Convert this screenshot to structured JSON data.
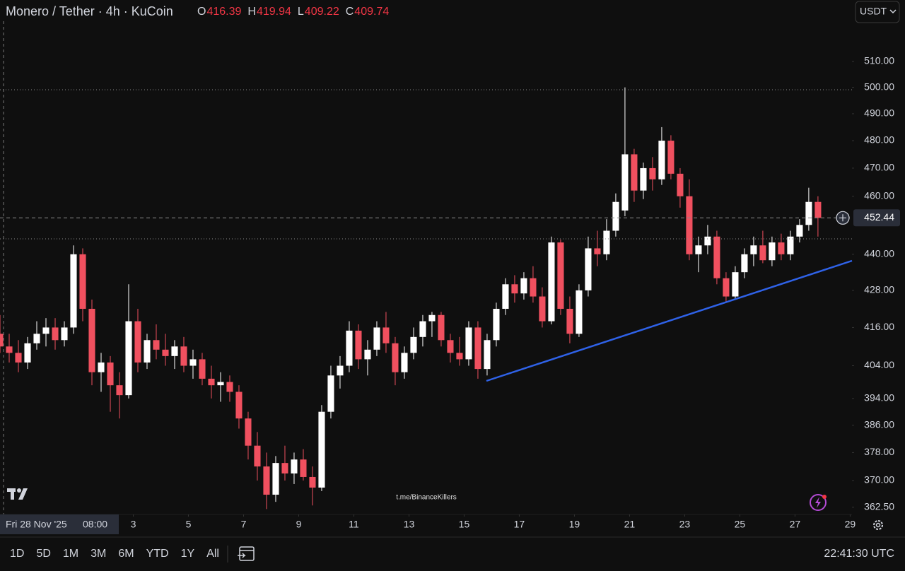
{
  "header": {
    "symbol": "Monero / Tether · 4h · KuCoin",
    "ohlc": [
      {
        "label": "O",
        "value": 416.39
      },
      {
        "label": "H",
        "value": 419.94
      },
      {
        "label": "L",
        "value": 409.22
      },
      {
        "label": "C",
        "value": 409.74
      }
    ],
    "currency": "USDT"
  },
  "chart_data": {
    "type": "candlestick",
    "log_scale": true,
    "up_color": "#ffffff",
    "down_color": "#f0505f",
    "ylim": [
      360.5,
      534.6
    ],
    "yticks": [
      {
        "value": 510,
        "label": "510.00"
      },
      {
        "value": 500,
        "label": "500.00"
      },
      {
        "value": 490,
        "label": "490.00"
      },
      {
        "value": 480,
        "label": "480.00"
      },
      {
        "value": 470,
        "label": "470.00"
      },
      {
        "value": 460,
        "label": "460.00"
      },
      {
        "value": 440,
        "label": "440.00"
      },
      {
        "value": 428,
        "label": "428.00"
      },
      {
        "value": 416,
        "label": "416.00"
      },
      {
        "value": 404,
        "label": "404.00"
      },
      {
        "value": 394,
        "label": "394.00"
      },
      {
        "value": 386,
        "label": "386.00"
      },
      {
        "value": 378,
        "label": "378.00"
      },
      {
        "value": 370,
        "label": "370.00"
      },
      {
        "value": 362.5,
        "label": "362.50"
      }
    ],
    "xlim": [
      0.5,
      93.2
    ],
    "xticks": [
      {
        "value": 15,
        "label": "3"
      },
      {
        "value": 21,
        "label": "5"
      },
      {
        "value": 27,
        "label": "7"
      },
      {
        "value": 33,
        "label": "9"
      },
      {
        "value": 39,
        "label": "11"
      },
      {
        "value": 45,
        "label": "13"
      },
      {
        "value": 51,
        "label": "15"
      },
      {
        "value": 57,
        "label": "17"
      },
      {
        "value": 63,
        "label": "19"
      },
      {
        "value": 69,
        "label": "21"
      },
      {
        "value": 75,
        "label": "23"
      },
      {
        "value": 81,
        "label": "25"
      },
      {
        "value": 87,
        "label": "27"
      },
      {
        "value": 93,
        "label": "29"
      }
    ],
    "crosshair_date": "Fri 28 Nov '25",
    "crosshair_time": "08:00",
    "current_price": 452.44,
    "open": [
      414,
      410,
      408,
      405,
      411,
      414,
      416,
      412,
      416,
      440,
      422,
      402,
      405,
      398,
      395,
      418,
      405,
      412,
      409,
      407,
      410,
      404,
      406,
      400,
      398,
      399,
      396,
      388,
      380,
      374,
      366,
      375,
      372,
      376,
      371,
      368,
      390,
      401,
      404,
      415,
      406,
      409,
      416,
      411,
      402,
      408,
      413,
      418,
      420,
      412,
      408,
      406,
      416,
      403,
      412,
      422,
      430,
      427,
      432,
      426,
      418,
      444,
      422,
      414,
      428,
      442,
      440,
      448,
      455,
      475,
      462,
      470,
      466,
      480,
      468,
      460,
      440,
      443,
      446,
      432,
      426,
      434,
      440,
      443,
      438,
      444,
      440,
      446,
      450,
      458
    ],
    "high": [
      420,
      414,
      412,
      413,
      418,
      419,
      419,
      418,
      443,
      442,
      425,
      408,
      407,
      402,
      430,
      422,
      414,
      417,
      414,
      412,
      413,
      409,
      408,
      404,
      402,
      401,
      398,
      390,
      384,
      378,
      377,
      380,
      378,
      379,
      374,
      392,
      404,
      407,
      418,
      417,
      412,
      418,
      421,
      413,
      410,
      416,
      420,
      421,
      421,
      414,
      413,
      418,
      418,
      414,
      424,
      432,
      433,
      434,
      436,
      429,
      446,
      445,
      426,
      430,
      446,
      448,
      452,
      461,
      500,
      477,
      472,
      474,
      485,
      482,
      470,
      466,
      446,
      450,
      448,
      434,
      436,
      442,
      446,
      448,
      446,
      447,
      448,
      452,
      463,
      460
    ],
    "low": [
      408,
      405,
      402,
      403,
      409,
      410,
      409,
      410,
      414,
      418,
      398,
      396,
      390,
      388,
      394,
      402,
      403,
      406,
      404,
      403,
      402,
      400,
      398,
      394,
      393,
      393,
      385,
      376,
      370,
      362,
      364,
      370,
      369,
      370,
      363,
      367,
      388,
      397,
      402,
      403,
      401,
      407,
      408,
      398,
      400,
      406,
      410,
      413,
      410,
      405,
      404,
      404,
      400,
      401,
      410,
      420,
      424,
      425,
      424,
      416,
      417,
      420,
      411,
      413,
      426,
      436,
      438,
      446,
      453,
      458,
      459,
      462,
      464,
      466,
      456,
      438,
      434,
      440,
      430,
      424,
      425,
      432,
      436,
      437,
      436,
      438,
      438,
      444,
      448,
      446
    ],
    "close": [
      410,
      408,
      405,
      411,
      414,
      416,
      412,
      416,
      440,
      422,
      402,
      405,
      398,
      395,
      418,
      405,
      412,
      409,
      407,
      410,
      404,
      406,
      400,
      398,
      399,
      396,
      388,
      380,
      374,
      366,
      375,
      372,
      376,
      371,
      368,
      390,
      401,
      404,
      415,
      406,
      409,
      416,
      411,
      402,
      408,
      413,
      418,
      420,
      412,
      408,
      406,
      416,
      403,
      412,
      422,
      430,
      427,
      432,
      426,
      418,
      444,
      422,
      414,
      428,
      442,
      440,
      448,
      458,
      475,
      462,
      470,
      466,
      480,
      468,
      460,
      440,
      443,
      446,
      432,
      426,
      434,
      440,
      443,
      438,
      444,
      440,
      446,
      450,
      458,
      452.44
    ],
    "watermark": "t.me/BinanceKillers"
  },
  "toolbar": {
    "ranges": [
      "1D",
      "5D",
      "1M",
      "3M",
      "6M",
      "YTD",
      "1Y",
      "All"
    ],
    "clock": "22:41:30 UTC"
  }
}
